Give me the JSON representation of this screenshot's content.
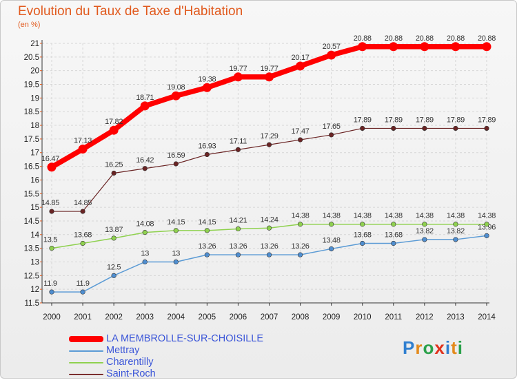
{
  "title": "Evolution du Taux de Taxe d'Habitation",
  "subtitle": "(en %)",
  "brand": {
    "letters": [
      "P",
      "r",
      "o",
      "x",
      "i",
      "t",
      "i"
    ],
    "colors": [
      "#2f7fd0",
      "#e38a1c",
      "#2aa14a",
      "#e0321c",
      "#2f7fd0",
      "#e38a1c",
      "#2aa14a"
    ]
  },
  "chart_data": {
    "type": "line",
    "title": "Evolution du Taux de Taxe d'Habitation",
    "ylabel": "(en %)",
    "xlabel": "",
    "x": [
      "2000",
      "2001",
      "2002",
      "2003",
      "2004",
      "2005",
      "2006",
      "2007",
      "2008",
      "2009",
      "2010",
      "2011",
      "2012",
      "2013",
      "2014"
    ],
    "ylim": [
      11.5,
      21
    ],
    "yticks": [
      "11.5",
      "12",
      "12.5",
      "13",
      "13.5",
      "14",
      "14.5",
      "15",
      "15.5",
      "16",
      "16.5",
      "17",
      "17.5",
      "18",
      "18.5",
      "19",
      "19.5",
      "20",
      "20.5",
      "21"
    ],
    "grid": true,
    "legend_position": "bottom-left",
    "series": [
      {
        "name": "LA MEMBROLLE-SUR-CHOISILLE",
        "color": "#ff0000",
        "values": [
          16.47,
          17.13,
          17.82,
          18.71,
          19.08,
          19.38,
          19.77,
          19.77,
          20.17,
          20.57,
          20.88,
          20.88,
          20.88,
          20.88,
          20.88
        ],
        "labels": [
          "16.47",
          "17.13",
          "17.82",
          "18.71",
          "19.08",
          "19.38",
          "19.77",
          "19.77",
          "20.17",
          "20.57",
          "20.88",
          "20.88",
          "20.88",
          "20.88",
          "20.88"
        ]
      },
      {
        "name": "Mettray",
        "color": "#5b9bd5",
        "values": [
          11.9,
          11.9,
          12.5,
          13,
          13,
          13.26,
          13.26,
          13.26,
          13.26,
          13.48,
          13.68,
          13.68,
          13.82,
          13.82,
          13.96
        ],
        "labels": [
          "11.9",
          "11.9",
          "12.5",
          "13",
          "13",
          "13.26",
          "13.26",
          "13.26",
          "13.26",
          "13.48",
          "13.68",
          "13.68",
          "13.82",
          "13.82",
          "13.96"
        ]
      },
      {
        "name": "Charentilly",
        "color": "#8fd14f",
        "values": [
          13.5,
          13.68,
          13.87,
          14.08,
          14.15,
          14.15,
          14.21,
          14.24,
          14.38,
          14.38,
          14.38,
          14.38,
          14.38,
          14.38,
          14.38
        ],
        "labels": [
          "13.5",
          "13.68",
          "13.87",
          "14.08",
          "14.15",
          "14.15",
          "14.21",
          "14.24",
          "14.38",
          "14.38",
          "14.38",
          "14.38",
          "14.38",
          "14.38",
          "14.38"
        ]
      },
      {
        "name": "Saint-Roch",
        "color": "#7b2f2f",
        "values": [
          14.85,
          14.85,
          16.25,
          16.42,
          16.59,
          16.93,
          17.11,
          17.29,
          17.47,
          17.65,
          17.89,
          17.89,
          17.89,
          17.89,
          17.89
        ],
        "labels": [
          "14.85",
          "14.85",
          "16.25",
          "16.42",
          "16.59",
          "16.93",
          "17.11",
          "17.29",
          "17.47",
          "17.65",
          "17.89",
          "17.89",
          "17.89",
          "17.89",
          "17.89"
        ]
      }
    ]
  }
}
